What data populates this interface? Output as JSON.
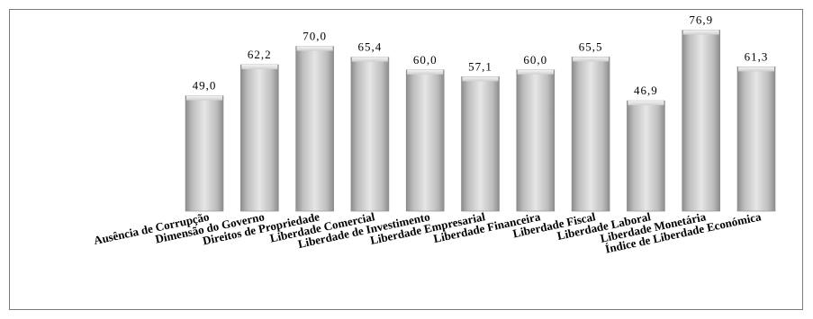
{
  "chart_data": {
    "type": "bar",
    "title": "",
    "xlabel": "",
    "ylabel": "",
    "ylim": [
      0,
      80
    ],
    "grid": false,
    "legend": "none",
    "categories": [
      "Ausência de Corrupção",
      "Dimensão do Governo",
      "Direitos de Propriedade",
      "Liberdade Comercial",
      "Liberdade de Investimento",
      "Liberdade Empresarial",
      "Liberdade Financeira",
      "Liberdade Fiscal",
      "Liberdade Laboral",
      "Liberdade Monetária",
      "Índice de Liberdade Económica"
    ],
    "values": [
      49.0,
      62.2,
      70.0,
      65.4,
      60.0,
      57.1,
      60.0,
      65.5,
      46.9,
      76.9,
      61.3
    ],
    "value_labels": [
      "49,0",
      "62,2",
      "70,0",
      "65,4",
      "60,0",
      "57,1",
      "60,0",
      "65,5",
      "46,9",
      "76,9",
      "61,3"
    ],
    "bar_color": "#b8b8b8"
  }
}
